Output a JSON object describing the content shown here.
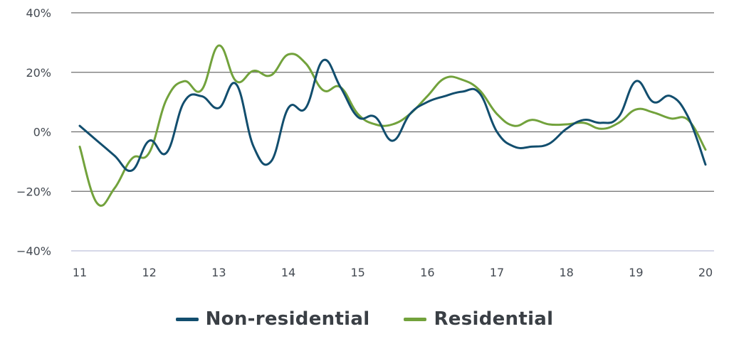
{
  "chart_data": {
    "type": "line",
    "ylim": [
      -40,
      40
    ],
    "xlim": [
      11,
      20
    ],
    "y_ticks": [
      {
        "value": 40,
        "label": "40%"
      },
      {
        "value": 20,
        "label": "20%"
      },
      {
        "value": 0,
        "label": "0%"
      },
      {
        "value": -20,
        "label": "−20%"
      },
      {
        "value": -40,
        "label": "−40%"
      }
    ],
    "x_ticks": [
      {
        "value": 11,
        "label": "11"
      },
      {
        "value": 12,
        "label": "12"
      },
      {
        "value": 13,
        "label": "13"
      },
      {
        "value": 14,
        "label": "14"
      },
      {
        "value": 15,
        "label": "15"
      },
      {
        "value": 16,
        "label": "16"
      },
      {
        "value": 17,
        "label": "17"
      },
      {
        "value": 18,
        "label": "18"
      },
      {
        "value": 19,
        "label": "19"
      },
      {
        "value": 20,
        "label": "20"
      }
    ],
    "grid": true,
    "legend_position": "bottom",
    "series": [
      {
        "name": "Non-residential",
        "color": "#124e6e",
        "points": [
          [
            11.0,
            2
          ],
          [
            11.25,
            -3
          ],
          [
            11.5,
            -8
          ],
          [
            11.75,
            -13
          ],
          [
            12.0,
            -3
          ],
          [
            12.25,
            -7
          ],
          [
            12.5,
            10
          ],
          [
            12.75,
            12
          ],
          [
            13.0,
            8
          ],
          [
            13.25,
            16
          ],
          [
            13.5,
            -5
          ],
          [
            13.75,
            -10
          ],
          [
            14.0,
            8
          ],
          [
            14.25,
            8
          ],
          [
            14.5,
            24
          ],
          [
            14.75,
            15
          ],
          [
            15.0,
            5
          ],
          [
            15.25,
            5
          ],
          [
            15.5,
            -3
          ],
          [
            15.75,
            6
          ],
          [
            16.0,
            10
          ],
          [
            16.25,
            12
          ],
          [
            16.5,
            13.5
          ],
          [
            16.75,
            13
          ],
          [
            17.0,
            0
          ],
          [
            17.25,
            -5
          ],
          [
            17.5,
            -5
          ],
          [
            17.75,
            -4
          ],
          [
            18.0,
            1
          ],
          [
            18.25,
            4
          ],
          [
            18.5,
            3
          ],
          [
            18.75,
            5
          ],
          [
            19.0,
            17
          ],
          [
            19.25,
            10
          ],
          [
            19.5,
            12
          ],
          [
            19.75,
            5
          ],
          [
            20.0,
            -11
          ]
        ]
      },
      {
        "name": "Residential",
        "color": "#72a23c",
        "points": [
          [
            11.0,
            -5
          ],
          [
            11.25,
            -24
          ],
          [
            11.5,
            -19
          ],
          [
            11.75,
            -9
          ],
          [
            12.0,
            -7
          ],
          [
            12.25,
            11
          ],
          [
            12.5,
            17
          ],
          [
            12.75,
            14
          ],
          [
            13.0,
            29
          ],
          [
            13.25,
            17
          ],
          [
            13.5,
            20.5
          ],
          [
            13.75,
            19
          ],
          [
            14.0,
            26
          ],
          [
            14.25,
            23
          ],
          [
            14.5,
            14
          ],
          [
            14.75,
            15
          ],
          [
            15.0,
            6
          ],
          [
            15.25,
            2.5
          ],
          [
            15.5,
            2.5
          ],
          [
            15.75,
            6
          ],
          [
            16.0,
            12
          ],
          [
            16.25,
            18
          ],
          [
            16.5,
            17.5
          ],
          [
            16.75,
            14
          ],
          [
            17.0,
            6
          ],
          [
            17.25,
            2
          ],
          [
            17.5,
            4
          ],
          [
            17.75,
            2.5
          ],
          [
            18.0,
            2.5
          ],
          [
            18.25,
            3
          ],
          [
            18.5,
            1
          ],
          [
            18.75,
            3
          ],
          [
            19.0,
            7.5
          ],
          [
            19.25,
            6.5
          ],
          [
            19.5,
            4.5
          ],
          [
            19.75,
            4
          ],
          [
            20.0,
            -6
          ]
        ]
      }
    ]
  }
}
